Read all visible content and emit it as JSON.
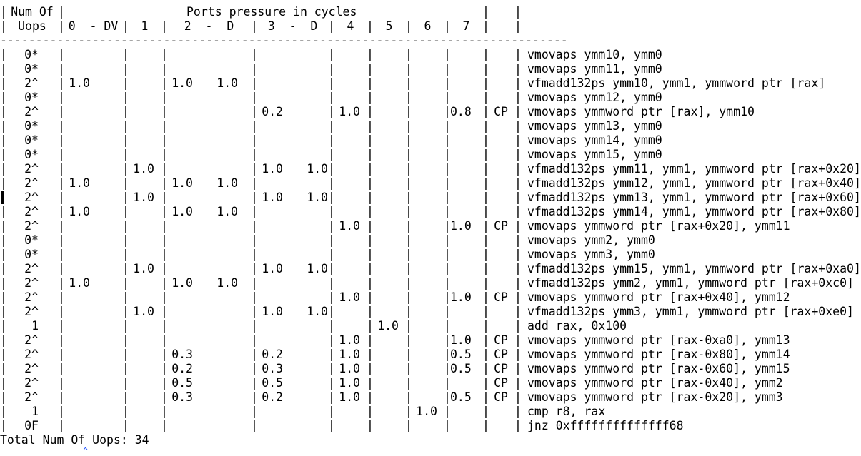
{
  "header": {
    "title": "Ports pressure in cycles",
    "num_of_label": "Num Of",
    "uops_label": "Uops",
    "ports": [
      "0  - DV",
      "1",
      "2  -  D",
      "3  -  D",
      "4",
      "5",
      "6",
      "7"
    ]
  },
  "rows": [
    {
      "uops": "0*",
      "p0": "",
      "p1": "",
      "p2": "",
      "p2d": "",
      "p3": "",
      "p3d": "",
      "p4": "",
      "p5": "",
      "p6": "",
      "p7": "",
      "cp": "",
      "instr": "vmovaps ymm10, ymm0"
    },
    {
      "uops": "0*",
      "p0": "",
      "p1": "",
      "p2": "",
      "p2d": "",
      "p3": "",
      "p3d": "",
      "p4": "",
      "p5": "",
      "p6": "",
      "p7": "",
      "cp": "",
      "instr": "vmovaps ymm11, ymm0"
    },
    {
      "uops": "2^",
      "p0": "1.0",
      "p1": "",
      "p2": "1.0",
      "p2d": "1.0",
      "p3": "",
      "p3d": "",
      "p4": "",
      "p5": "",
      "p6": "",
      "p7": "",
      "cp": "",
      "instr": "vfmadd132ps ymm10, ymm1, ymmword ptr [rax]"
    },
    {
      "uops": "0*",
      "p0": "",
      "p1": "",
      "p2": "",
      "p2d": "",
      "p3": "",
      "p3d": "",
      "p4": "",
      "p5": "",
      "p6": "",
      "p7": "",
      "cp": "",
      "instr": "vmovaps ymm12, ymm0"
    },
    {
      "uops": "2^",
      "p0": "",
      "p1": "",
      "p2": "",
      "p2d": "",
      "p3": "0.2",
      "p3d": "",
      "p4": "1.0",
      "p5": "",
      "p6": "",
      "p7": "0.8",
      "cp": "CP",
      "instr": "vmovaps ymmword ptr [rax], ymm10"
    },
    {
      "uops": "0*",
      "p0": "",
      "p1": "",
      "p2": "",
      "p2d": "",
      "p3": "",
      "p3d": "",
      "p4": "",
      "p5": "",
      "p6": "",
      "p7": "",
      "cp": "",
      "instr": "vmovaps ymm13, ymm0"
    },
    {
      "uops": "0*",
      "p0": "",
      "p1": "",
      "p2": "",
      "p2d": "",
      "p3": "",
      "p3d": "",
      "p4": "",
      "p5": "",
      "p6": "",
      "p7": "",
      "cp": "",
      "instr": "vmovaps ymm14, ymm0"
    },
    {
      "uops": "0*",
      "p0": "",
      "p1": "",
      "p2": "",
      "p2d": "",
      "p3": "",
      "p3d": "",
      "p4": "",
      "p5": "",
      "p6": "",
      "p7": "",
      "cp": "",
      "instr": "vmovaps ymm15, ymm0"
    },
    {
      "uops": "2^",
      "p0": "",
      "p1": "1.0",
      "p2": "",
      "p2d": "",
      "p3": "1.0",
      "p3d": "1.0",
      "p4": "",
      "p5": "",
      "p6": "",
      "p7": "",
      "cp": "",
      "instr": "vfmadd132ps ymm11, ymm1, ymmword ptr [rax+0x20]"
    },
    {
      "uops": "2^",
      "p0": "1.0",
      "p1": "",
      "p2": "1.0",
      "p2d": "1.0",
      "p3": "",
      "p3d": "",
      "p4": "",
      "p5": "",
      "p6": "",
      "p7": "",
      "cp": "",
      "instr": "vfmadd132ps ymm12, ymm1, ymmword ptr [rax+0x40]"
    },
    {
      "uops": "2^",
      "p0": "",
      "p1": "1.0",
      "p2": "",
      "p2d": "",
      "p3": "1.0",
      "p3d": "1.0",
      "p4": "",
      "p5": "",
      "p6": "",
      "p7": "",
      "cp": "",
      "instr": "vfmadd132ps ymm13, ymm1, ymmword ptr [rax+0x60]"
    },
    {
      "uops": "2^",
      "p0": "1.0",
      "p1": "",
      "p2": "1.0",
      "p2d": "1.0",
      "p3": "",
      "p3d": "",
      "p4": "",
      "p5": "",
      "p6": "",
      "p7": "",
      "cp": "",
      "instr": "vfmadd132ps ymm14, ymm1, ymmword ptr [rax+0x80]"
    },
    {
      "uops": "2^",
      "p0": "",
      "p1": "",
      "p2": "",
      "p2d": "",
      "p3": "",
      "p3d": "",
      "p4": "1.0",
      "p5": "",
      "p6": "",
      "p7": "1.0",
      "cp": "CP",
      "instr": "vmovaps ymmword ptr [rax+0x20], ymm11"
    },
    {
      "uops": "0*",
      "p0": "",
      "p1": "",
      "p2": "",
      "p2d": "",
      "p3": "",
      "p3d": "",
      "p4": "",
      "p5": "",
      "p6": "",
      "p7": "",
      "cp": "",
      "instr": "vmovaps ymm2, ymm0"
    },
    {
      "uops": "0*",
      "p0": "",
      "p1": "",
      "p2": "",
      "p2d": "",
      "p3": "",
      "p3d": "",
      "p4": "",
      "p5": "",
      "p6": "",
      "p7": "",
      "cp": "",
      "instr": "vmovaps ymm3, ymm0"
    },
    {
      "uops": "2^",
      "p0": "",
      "p1": "1.0",
      "p2": "",
      "p2d": "",
      "p3": "1.0",
      "p3d": "1.0",
      "p4": "",
      "p5": "",
      "p6": "",
      "p7": "",
      "cp": "",
      "instr": "vfmadd132ps ymm15, ymm1, ymmword ptr [rax+0xa0]"
    },
    {
      "uops": "2^",
      "p0": "1.0",
      "p1": "",
      "p2": "1.0",
      "p2d": "1.0",
      "p3": "",
      "p3d": "",
      "p4": "",
      "p5": "",
      "p6": "",
      "p7": "",
      "cp": "",
      "instr": "vfmadd132ps ymm2, ymm1, ymmword ptr [rax+0xc0]"
    },
    {
      "uops": "2^",
      "p0": "",
      "p1": "",
      "p2": "",
      "p2d": "",
      "p3": "",
      "p3d": "",
      "p4": "1.0",
      "p5": "",
      "p6": "",
      "p7": "1.0",
      "cp": "CP",
      "instr": "vmovaps ymmword ptr [rax+0x40], ymm12"
    },
    {
      "uops": "2^",
      "p0": "",
      "p1": "1.0",
      "p2": "",
      "p2d": "",
      "p3": "1.0",
      "p3d": "1.0",
      "p4": "",
      "p5": "",
      "p6": "",
      "p7": "",
      "cp": "",
      "instr": "vfmadd132ps ymm3, ymm1, ymmword ptr [rax+0xe0]"
    },
    {
      "uops": "1",
      "p0": "",
      "p1": "",
      "p2": "",
      "p2d": "",
      "p3": "",
      "p3d": "",
      "p4": "",
      "p5": "1.0",
      "p6": "",
      "p7": "",
      "cp": "",
      "instr": "add rax, 0x100"
    },
    {
      "uops": "2^",
      "p0": "",
      "p1": "",
      "p2": "",
      "p2d": "",
      "p3": "",
      "p3d": "",
      "p4": "1.0",
      "p5": "",
      "p6": "",
      "p7": "1.0",
      "cp": "CP",
      "instr": "vmovaps ymmword ptr [rax-0xa0], ymm13"
    },
    {
      "uops": "2^",
      "p0": "",
      "p1": "",
      "p2": "0.3",
      "p2d": "",
      "p3": "0.2",
      "p3d": "",
      "p4": "1.0",
      "p5": "",
      "p6": "",
      "p7": "0.5",
      "cp": "CP",
      "instr": "vmovaps ymmword ptr [rax-0x80], ymm14"
    },
    {
      "uops": "2^",
      "p0": "",
      "p1": "",
      "p2": "0.2",
      "p2d": "",
      "p3": "0.3",
      "p3d": "",
      "p4": "1.0",
      "p5": "",
      "p6": "",
      "p7": "0.5",
      "cp": "CP",
      "instr": "vmovaps ymmword ptr [rax-0x60], ymm15"
    },
    {
      "uops": "2^",
      "p0": "",
      "p1": "",
      "p2": "0.5",
      "p2d": "",
      "p3": "0.5",
      "p3d": "",
      "p4": "1.0",
      "p5": "",
      "p6": "",
      "p7": "",
      "cp": "CP",
      "instr": "vmovaps ymmword ptr [rax-0x40], ymm2"
    },
    {
      "uops": "2^",
      "p0": "",
      "p1": "",
      "p2": "0.3",
      "p2d": "",
      "p3": "0.2",
      "p3d": "",
      "p4": "1.0",
      "p5": "",
      "p6": "",
      "p7": "0.5",
      "cp": "CP",
      "instr": "vmovaps ymmword ptr [rax-0x20], ymm3"
    },
    {
      "uops": "1",
      "p0": "",
      "p1": "",
      "p2": "",
      "p2d": "",
      "p3": "",
      "p3d": "",
      "p4": "",
      "p5": "",
      "p6": "1.0",
      "p7": "",
      "cp": "",
      "instr": "cmp r8, rax"
    },
    {
      "uops": "0F",
      "p0": "",
      "p1": "",
      "p2": "",
      "p2d": "",
      "p3": "",
      "p3d": "",
      "p4": "",
      "p5": "",
      "p6": "",
      "p7": "",
      "cp": "",
      "instr": "jnz 0xffffffffffffff68"
    }
  ],
  "footer": {
    "total_label": "Total Num Of Uops: 34",
    "cursor_glyph": "^"
  }
}
